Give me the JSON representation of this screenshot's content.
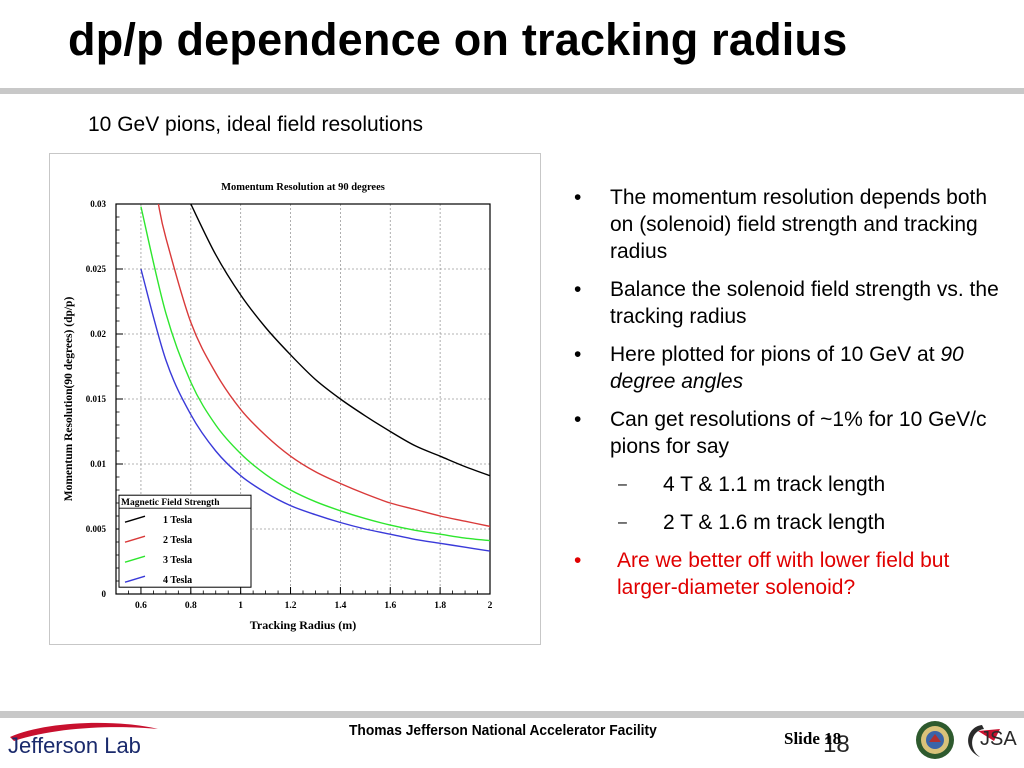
{
  "slide": {
    "title": "dp/p dependence on tracking radius",
    "subtitle": "10 GeV pions, ideal field resolutions"
  },
  "chart_data": {
    "type": "line",
    "title": "Momentum Resolution at 90 degrees",
    "xlabel": "Tracking Radius (m)",
    "ylabel": "Momentum Resolution(90 degrees) (dp/p)",
    "xlim": [
      0.5,
      2.0
    ],
    "ylim": [
      0,
      0.03
    ],
    "xticks": [
      "0.6",
      "0.8",
      "1",
      "1.2",
      "1.4",
      "1.6",
      "1.8",
      "2"
    ],
    "yticks": [
      "0",
      "0.005",
      "0.01",
      "0.015",
      "0.02",
      "0.025",
      "0.03"
    ],
    "grid": true,
    "legend_title": "Magnetic Field Strength",
    "legend_position": "bottom-left",
    "series": [
      {
        "name": "1 Tesla",
        "color": "#000000",
        "x": [
          0.8,
          0.9,
          1.0,
          1.1,
          1.2,
          1.3,
          1.4,
          1.5,
          1.6,
          1.7,
          1.8,
          1.9,
          2.0
        ],
        "y": [
          0.03,
          0.0261,
          0.023,
          0.0205,
          0.0184,
          0.0165,
          0.015,
          0.0137,
          0.0125,
          0.0114,
          0.0106,
          0.0098,
          0.0091
        ]
      },
      {
        "name": "2 Tesla",
        "color": "#d93a3a",
        "x": [
          0.67,
          0.7,
          0.8,
          0.9,
          1.0,
          1.1,
          1.2,
          1.3,
          1.4,
          1.5,
          1.6,
          1.7,
          1.8,
          1.9,
          2.0
        ],
        "y": [
          0.03,
          0.0274,
          0.0209,
          0.017,
          0.0142,
          0.0122,
          0.0106,
          0.0094,
          0.0085,
          0.0077,
          0.007,
          0.0065,
          0.006,
          0.0056,
          0.0052
        ]
      },
      {
        "name": "3 Tesla",
        "color": "#2ee62e",
        "x": [
          0.6,
          0.7,
          0.8,
          0.9,
          1.0,
          1.1,
          1.2,
          1.3,
          1.4,
          1.5,
          1.6,
          1.7,
          1.8,
          1.9,
          2.0
        ],
        "y": [
          0.0298,
          0.0216,
          0.0163,
          0.013,
          0.0108,
          0.0092,
          0.008,
          0.0071,
          0.0064,
          0.0058,
          0.0053,
          0.0049,
          0.0046,
          0.0043,
          0.0041
        ]
      },
      {
        "name": "4 Tesla",
        "color": "#3a3ad9",
        "x": [
          0.6,
          0.7,
          0.8,
          0.9,
          1.0,
          1.1,
          1.2,
          1.3,
          1.4,
          1.5,
          1.6,
          1.7,
          1.8,
          1.9,
          2.0
        ],
        "y": [
          0.025,
          0.018,
          0.0138,
          0.011,
          0.0091,
          0.0078,
          0.0068,
          0.0061,
          0.0055,
          0.005,
          0.0046,
          0.0042,
          0.0039,
          0.0036,
          0.0033
        ]
      }
    ]
  },
  "bullets": [
    {
      "text": "The momentum resolution depends both on (solenoid) field strength and tracking radius"
    },
    {
      "text": "Balance the solenoid field strength vs. the tracking radius"
    },
    {
      "text_before": "Here plotted for pions of 10 GeV at ",
      "text_italic": "90 degree angles"
    },
    {
      "text": "Can get resolutions of ~1% for 10 GeV/c pions for say"
    }
  ],
  "sub_bullets": [
    "4 T & 1.1 m track length",
    "2 T & 1.6 m track length"
  ],
  "highlight_bullet": "Are we better off with lower field but larger-diameter solenoid?",
  "bullet_marker": "•",
  "sub_marker": "–",
  "footer": {
    "center": "Thomas Jefferson National Accelerator Facility",
    "slide_label": "Slide 18",
    "slide_number": "18",
    "logo_text": "Jefferson Lab",
    "jsa_text": "JSA"
  }
}
